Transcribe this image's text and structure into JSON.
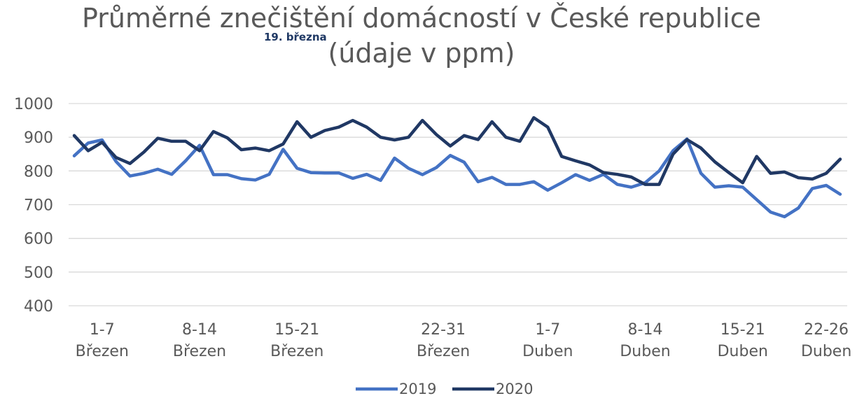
{
  "chart_data": {
    "type": "line",
    "title_line1": "Průměrné znečištění domácností v České republice",
    "title_line2": "(údaje v ppm)",
    "annotation": "19. března",
    "ylim": [
      400,
      1000
    ],
    "yticks": [
      400,
      500,
      600,
      700,
      800,
      900,
      1000
    ],
    "grid": true,
    "legend_position": "bottom",
    "x_labels": [
      {
        "line1": "1-7",
        "line2": "Březen",
        "index": 2
      },
      {
        "line1": "8-14",
        "line2": "Březen",
        "index": 9
      },
      {
        "line1": "15-21",
        "line2": "Březen",
        "index": 16
      },
      {
        "line1": "22-31",
        "line2": "Březen",
        "index": 26.5
      },
      {
        "line1": "1-7",
        "line2": "Duben",
        "index": 34
      },
      {
        "line1": "8-14",
        "line2": "Duben",
        "index": 41
      },
      {
        "line1": "15-21",
        "line2": "Duben",
        "index": 48
      },
      {
        "line1": "22-26",
        "line2": "Duben",
        "index": 54
      }
    ],
    "series": [
      {
        "name": "2019",
        "color": "#4472c4",
        "values": [
          845,
          883,
          892,
          828,
          785,
          793,
          805,
          790,
          830,
          876,
          789,
          789,
          777,
          773,
          790,
          864,
          808,
          795,
          794,
          794,
          778,
          790,
          772,
          838,
          808,
          789,
          810,
          846,
          826,
          768,
          781,
          760,
          760,
          768,
          743,
          765,
          789,
          772,
          790,
          760,
          752,
          765,
          800,
          860,
          895,
          793,
          752,
          756,
          752,
          715,
          678,
          664,
          690,
          748,
          757,
          731
        ]
      },
      {
        "name": "2020",
        "color": "#203864",
        "values": [
          905,
          860,
          885,
          840,
          822,
          856,
          897,
          888,
          888,
          860,
          917,
          898,
          863,
          868,
          860,
          880,
          946,
          900,
          920,
          930,
          950,
          930,
          900,
          892,
          900,
          950,
          908,
          874,
          905,
          893,
          946,
          900,
          888,
          958,
          930,
          843,
          830,
          818,
          795,
          790,
          782,
          760,
          760,
          850,
          893,
          868,
          827,
          795,
          765,
          843,
          793,
          797,
          780,
          776,
          793,
          835
        ]
      }
    ]
  }
}
